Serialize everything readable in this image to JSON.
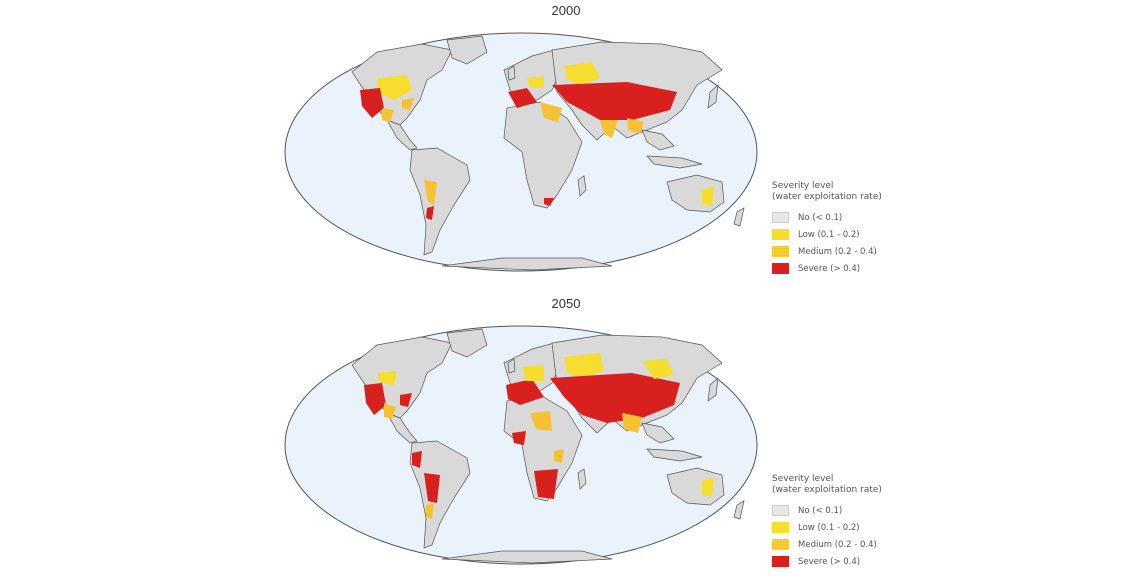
{
  "maps": [
    {
      "year": "2000",
      "legend": {
        "title": "Severity level",
        "subtitle": "(water exploitation rate)",
        "items": [
          {
            "label": "No (< 0.1)",
            "color": "#e7e7e7"
          },
          {
            "label": "Low (0.1 - 0.2)",
            "color": "#f7de2e"
          },
          {
            "label": "Medium (0.2 - 0.4)",
            "color": "#f6c234"
          },
          {
            "label": "Severe (> 0.4)",
            "color": "#d8201f"
          }
        ]
      }
    },
    {
      "year": "2050",
      "legend": {
        "title": "Severity level",
        "subtitle": "(water exploitation rate)",
        "items": [
          {
            "label": "No (< 0.1)",
            "color": "#e7e7e7"
          },
          {
            "label": "Low (0.1 - 0.2)",
            "color": "#f7de2e"
          },
          {
            "label": "Medium (0.2 - 0.4)",
            "color": "#f6c234"
          },
          {
            "label": "Severe (> 0.4)",
            "color": "#d8201f"
          }
        ]
      }
    }
  ],
  "colors": {
    "ocean": "#eaf3fb",
    "land": "#d9d9d9",
    "coast": "#555555"
  }
}
